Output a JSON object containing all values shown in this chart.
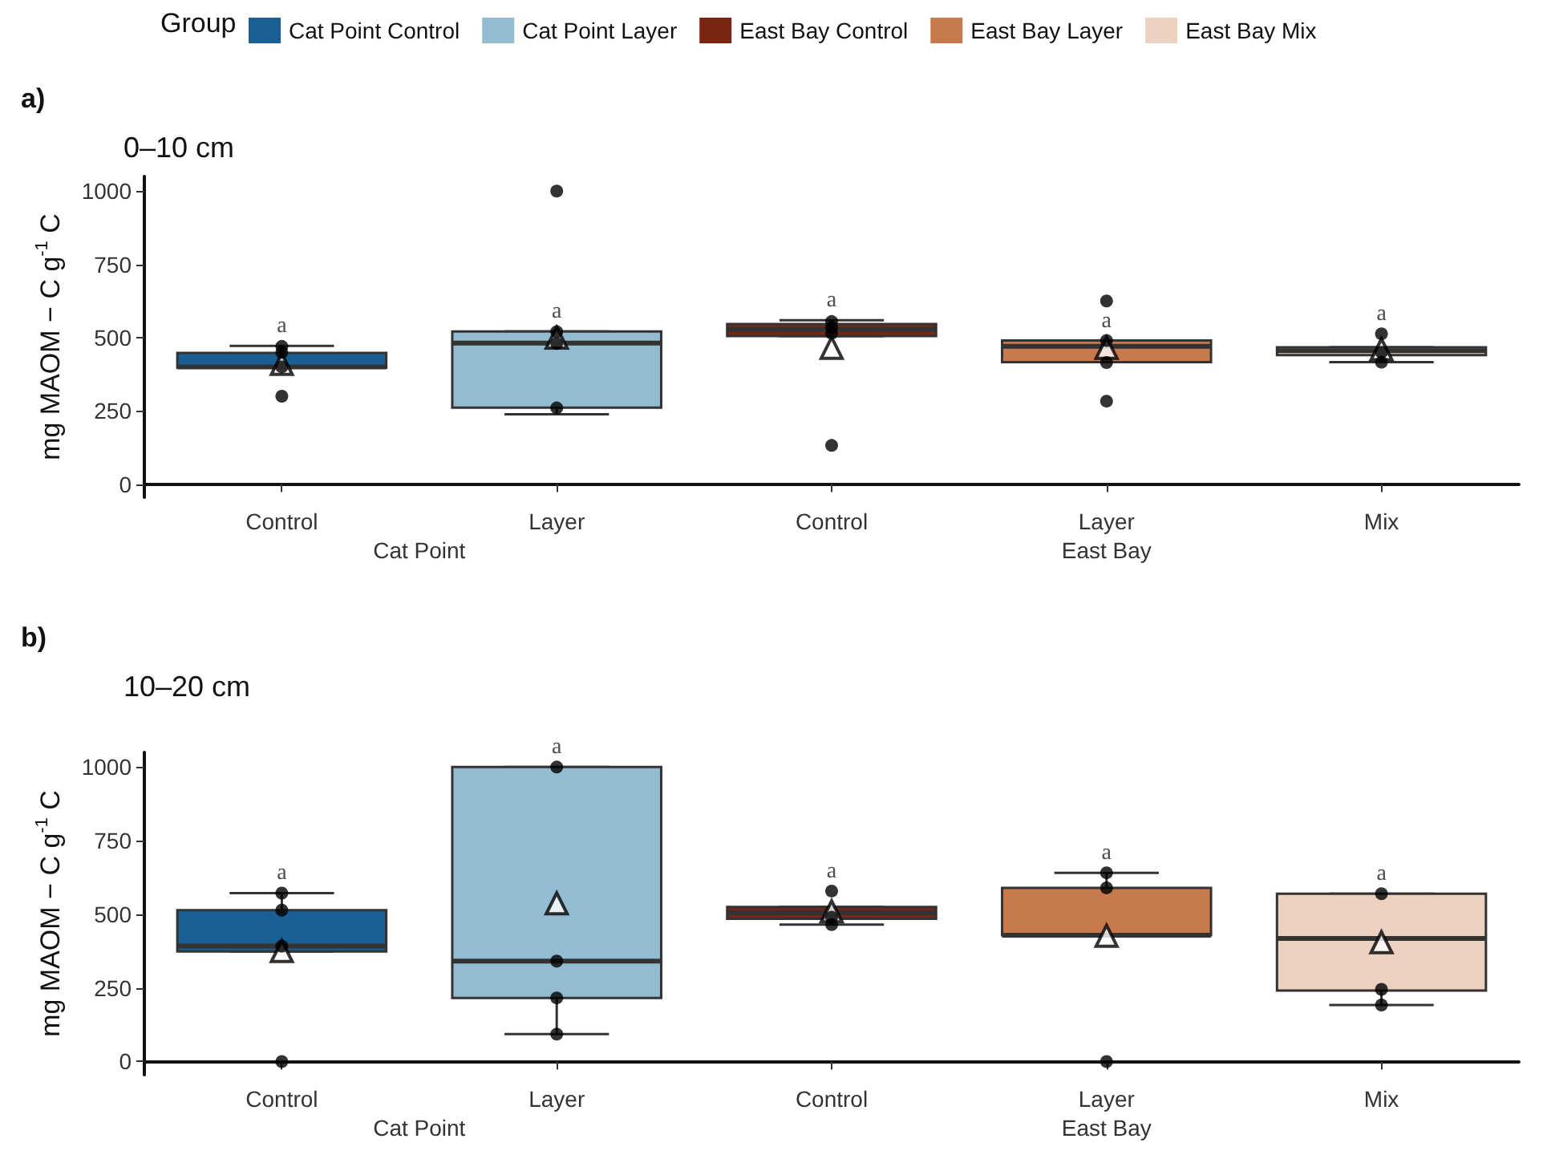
{
  "chart_data": [
    {
      "type": "box",
      "title": "a)",
      "subtitle": "0–10 cm",
      "ylabel": "mg MAOM − C g$^{-1}$ C",
      "legend_title": "Group",
      "legend": "top",
      "grid": false,
      "categories": [
        "Control",
        "Layer",
        "Control",
        "Layer",
        "Mix"
      ],
      "ylim": [
        -45,
        1050
      ],
      "yticks": [
        0,
        250,
        500,
        750,
        1000
      ],
      "series": [
        {
          "name": "Cat Point Control",
          "color": "#1a5f93",
          "boxes": [
            {
              "low": 397,
              "q1": 397,
              "median": 400,
              "q3": 448,
              "high": 472,
              "mean": 410,
              "outliers": [
                300
              ]
            },
            null,
            null,
            null,
            null
          ]
        },
        {
          "name": "Cat Point Layer",
          "color": "#93bcd1",
          "boxes": [
            null,
            {
              "low": 238,
              "q1": 261,
              "median": 481,
              "q3": 521,
              "high": 521,
              "mean": 500,
              "outliers": [
                1000
              ]
            },
            null,
            null,
            null
          ]
        },
        {
          "name": "East Bay Control",
          "color": "#7a2512",
          "boxes": [
            null,
            null,
            {
              "low": 505,
              "q1": 505,
              "median": 528,
              "q3": 546,
              "high": 559,
              "mean": 465,
              "outliers": [
                132
              ]
            },
            null,
            null
          ]
        },
        {
          "name": "East Bay Layer",
          "color": "#c87a4f",
          "boxes": [
            null,
            null,
            null,
            {
              "low": 416,
              "q1": 416,
              "median": 470,
              "q3": 490,
              "high": 490,
              "mean": 465,
              "outliers": [
                625,
                283
              ]
            },
            null
          ]
        },
        {
          "name": "East Bay Mix",
          "color": "#ecd0c0",
          "boxes": [
            null,
            null,
            null,
            null,
            {
              "low": 416,
              "q1": 440,
              "median": 455,
              "q3": 467,
              "high": 467,
              "mean": 460,
              "outliers": [
                513
              ]
            }
          ]
        },
        {
          "type": "scatter",
          "color": "#000000",
          "values": [
            400,
            520,
            555,
            490,
            null
          ]
        },
        {
          "type": "scatter",
          "color": "#000000",
          "values": [
            450,
            480,
            535,
            415,
            450
          ]
        },
        {
          "type": "scatter",
          "color": "#000000",
          "values": [
            470,
            260,
            515,
            null,
            416
          ]
        }
      ],
      "annotations": [
        "a",
        "a",
        "a",
        "a",
        "a",
        "Cat Point",
        "East Bay"
      ]
    },
    {
      "type": "box",
      "title": "b)",
      "subtitle": "10–20 cm",
      "ylabel": "mg MAOM − C g$^{-1}$ C",
      "grid": false,
      "categories": [
        "Control",
        "Layer",
        "Control",
        "Layer",
        "Mix"
      ],
      "ylim": [
        -45,
        1050
      ],
      "yticks": [
        0,
        250,
        500,
        750,
        1000
      ],
      "series": [
        {
          "color": "#1a5f93",
          "boxes": [
            {
              "low": 374,
              "q1": 374,
              "median": 392,
              "q3": 514,
              "high": 572,
              "mean": 375,
              "outliers": [
                0
              ]
            },
            null,
            null,
            null,
            null
          ]
        },
        {
          "color": "#93bcd1",
          "boxes": [
            null,
            {
              "low": 93,
              "q1": 216,
              "median": 341,
              "q3": 1000,
              "high": 1000,
              "mean": 537
            },
            null,
            null,
            null
          ]
        },
        {
          "color": "#7a2512",
          "boxes": [
            null,
            null,
            {
              "low": 465,
              "q1": 485,
              "median": 505,
              "q3": 525,
              "high": 525,
              "mean": 510,
              "outliers": [
                579
              ]
            },
            null,
            null
          ]
        },
        {
          "color": "#c87a4f",
          "boxes": [
            null,
            null,
            null,
            {
              "low": 429,
              "q1": 429,
              "median": 429,
              "q3": 590,
              "high": 641,
              "mean": 427,
              "outliers": [
                0
              ]
            },
            null
          ]
        },
        {
          "color": "#ecd0c0",
          "boxes": [
            null,
            null,
            null,
            null,
            {
              "low": 192,
              "q1": 241,
              "median": 418,
              "q3": 570,
              "high": 570,
              "mean": 405
            }
          ]
        },
        {
          "type": "scatter",
          "color": "#000000",
          "values": [
            572,
            1000,
            null,
            641,
            570
          ]
        },
        {
          "type": "scatter",
          "color": "#000000",
          "values": [
            514,
            341,
            490,
            590,
            245
          ]
        },
        {
          "type": "scatter",
          "color": "#000000",
          "values": [
            392,
            216,
            465,
            null,
            192
          ]
        },
        {
          "type": "scatter",
          "color": "#000000",
          "values": [
            null,
            93,
            null,
            null,
            null
          ]
        }
      ],
      "annotations": [
        "a",
        "a",
        "a",
        "a",
        "a",
        "Cat Point",
        "East Bay"
      ]
    }
  ]
}
